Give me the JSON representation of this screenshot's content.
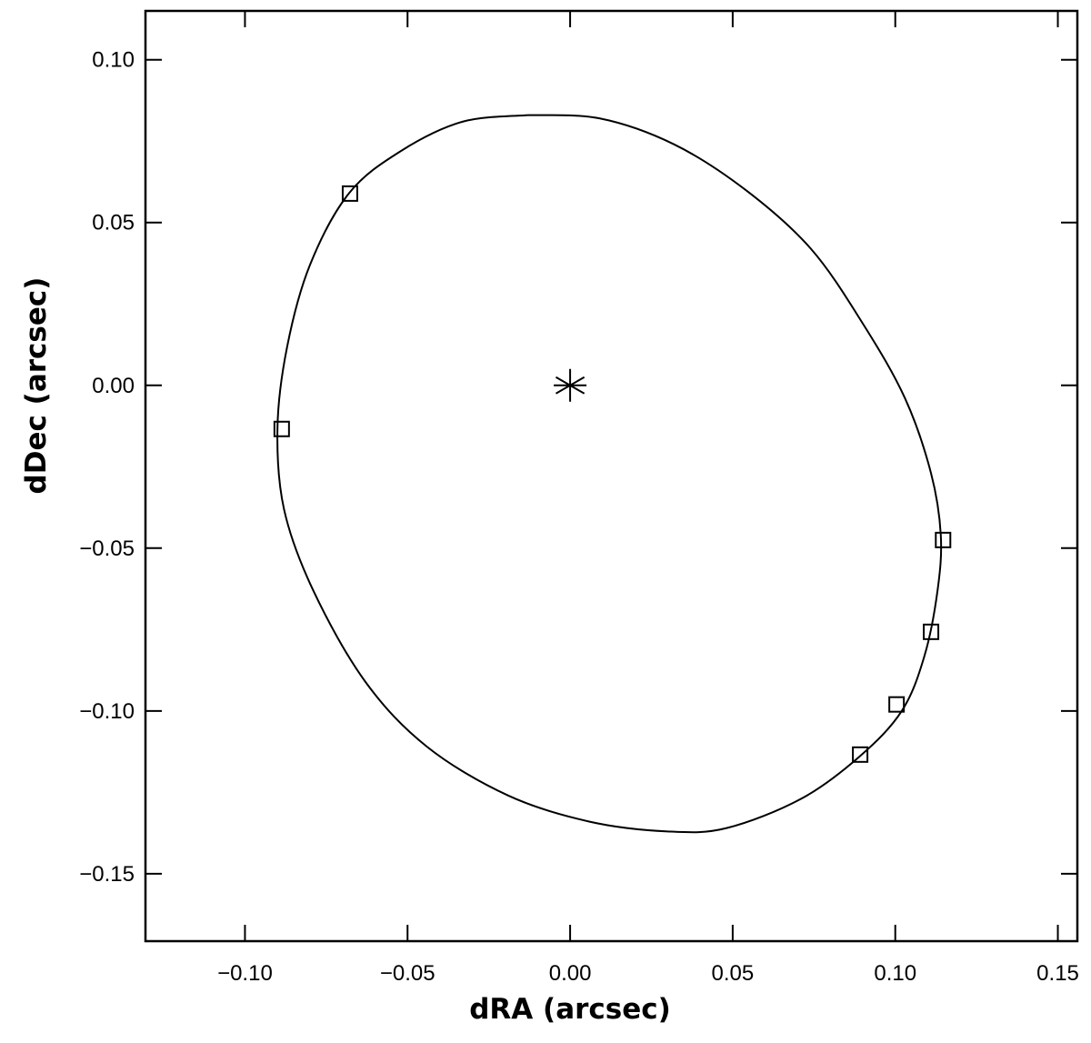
{
  "chart_data": {
    "type": "scatter",
    "x_label": "dRA (arcsec)",
    "y_label": "dDec (arcsec)",
    "xlim": [
      -0.1306,
      0.156
    ],
    "ylim": [
      -0.1707,
      0.115
    ],
    "xticks": [
      {
        "value": -0.1,
        "label": "−0.10"
      },
      {
        "value": -0.05,
        "label": "−0.05"
      },
      {
        "value": 0,
        "label": "0.00"
      },
      {
        "value": 0.05,
        "label": "0.05"
      },
      {
        "value": 0.1,
        "label": "0.10"
      },
      {
        "value": 0.15,
        "label": "0.15"
      }
    ],
    "yticks": [
      {
        "value": 0.1,
        "label": "0.10"
      },
      {
        "value": 0.05,
        "label": "0.05"
      },
      {
        "value": 0,
        "label": "0.00"
      },
      {
        "value": -0.05,
        "label": "−0.05"
      },
      {
        "value": -0.1,
        "label": "−0.10"
      },
      {
        "value": -0.15,
        "label": "−0.15"
      }
    ],
    "series": [
      {
        "type": "line",
        "color": "#000000",
        "x": [
          -0.013,
          0.009,
          0.032,
          0.054,
          0.074,
          0.09,
          0.103,
          0.111,
          0.114,
          0.113,
          0.109,
          0.102,
          0.089,
          0.071,
          0.048,
          0.03,
          0.006,
          -0.019,
          -0.044,
          -0.063,
          -0.079,
          -0.088,
          -0.09,
          -0.087,
          -0.08,
          -0.068,
          -0.052,
          -0.033,
          -0.013
        ],
        "y": [
          0.083,
          0.082,
          0.074,
          0.06,
          0.042,
          0.019,
          -0.004,
          -0.027,
          -0.046,
          -0.063,
          -0.083,
          -0.1,
          -0.114,
          -0.127,
          -0.136,
          -0.137,
          -0.134,
          -0.126,
          -0.111,
          -0.091,
          -0.063,
          -0.038,
          -0.013,
          0.012,
          0.037,
          0.059,
          0.072,
          0.081,
          0.083
        ]
      },
      {
        "type": "scatter",
        "marker": "square",
        "color": "#000000",
        "x": [
          -0.0677,
          -0.0887,
          0.1147,
          0.111,
          0.1004,
          0.0892
        ],
        "y": [
          0.0589,
          -0.0134,
          -0.0475,
          -0.0757,
          -0.098,
          -0.1134
        ]
      },
      {
        "type": "scatter",
        "marker": "asterisk",
        "color": "#000000",
        "x": [
          0
        ],
        "y": [
          0
        ]
      }
    ]
  }
}
